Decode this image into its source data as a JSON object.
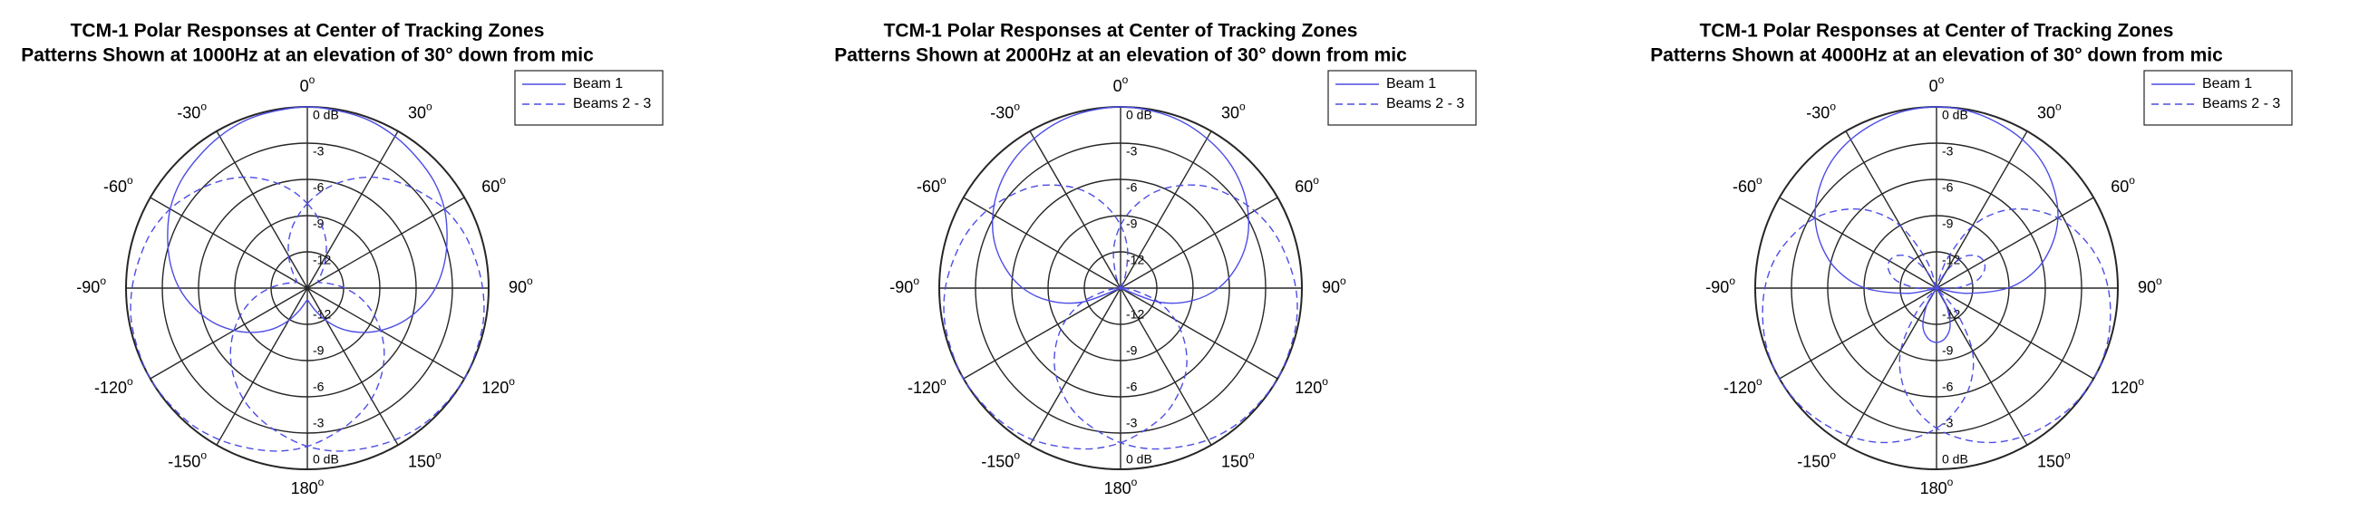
{
  "chart_data": [
    {
      "type": "polar",
      "title": "TCM-1 Polar Responses at Center of Tracking Zones",
      "subtitle": "Patterns Shown at 1000Hz at an elevation of 30° down from mic",
      "angle_unit": "o",
      "theta": [
        0,
        10,
        20,
        30,
        40,
        50,
        60,
        70,
        80,
        90,
        100,
        110,
        120,
        130,
        140,
        150,
        160,
        170,
        180,
        190,
        200,
        210,
        220,
        230,
        240,
        250,
        260,
        270,
        280,
        290,
        300,
        310,
        320,
        330,
        340,
        350
      ],
      "xticks": [
        0,
        30,
        60,
        90,
        120,
        150,
        180,
        -150,
        -120,
        -90,
        -60,
        -30
      ],
      "ylim": [
        -15,
        0
      ],
      "yticks": [
        {
          "value": 0,
          "label": "0 dB"
        },
        -3,
        -6,
        -9,
        -12
      ],
      "series": [
        {
          "name": "Beam 1",
          "color": "#4d4de6",
          "style": "solid",
          "values": [
            0,
            -0.1,
            -0.2,
            -0.5,
            -0.9,
            -1.3,
            -1.9,
            -2.7,
            -3.5,
            -4.4,
            -5.5,
            -6.7,
            -8.0,
            -9.3,
            -10.6,
            -11.9,
            -13.0,
            -13.7,
            -14.0,
            -13.7,
            -13.0,
            -11.9,
            -10.6,
            -9.3,
            -8.0,
            -6.7,
            -5.5,
            -4.4,
            -3.5,
            -2.7,
            -1.9,
            -1.3,
            -0.9,
            -0.5,
            -0.2,
            -0.1
          ]
        },
        {
          "name": "Beams 2 - 3",
          "color": "#4d4de6",
          "style": "dashed",
          "values": [
            -8.0,
            -6.7,
            -5.5,
            -4.4,
            -3.5,
            -2.7,
            -1.9,
            -1.3,
            -0.9,
            -0.5,
            -0.2,
            -0.1,
            0,
            -0.1,
            -0.2,
            -0.5,
            -0.9,
            -1.3,
            -1.9,
            -2.7,
            -3.5,
            -4.4,
            -5.5,
            -6.7,
            -8.0,
            -9.3,
            -10.6,
            -11.9,
            -13.0,
            -13.7,
            -14.0,
            -13.7,
            -13.0,
            -11.9,
            -10.6,
            -9.3
          ]
        },
        {
          "color": "#4d4de6",
          "style": "dashed",
          "values": [
            -8.0,
            -9.3,
            -10.6,
            -11.9,
            -13.0,
            -13.7,
            -14.0,
            -13.7,
            -13.0,
            -11.9,
            -10.6,
            -9.3,
            -8.0,
            -6.7,
            -5.5,
            -4.4,
            -3.5,
            -2.7,
            -1.9,
            -1.3,
            -0.9,
            -0.5,
            -0.2,
            -0.1,
            0,
            -0.1,
            -0.2,
            -0.5,
            -0.9,
            -1.3,
            -1.9,
            -2.7,
            -3.5,
            -4.4,
            -5.5,
            -6.7
          ]
        }
      ]
    },
    {
      "type": "polar",
      "title": "TCM-1 Polar Responses at Center of Tracking Zones",
      "subtitle": "Patterns Shown at 2000Hz at an elevation of 30° down from mic",
      "angle_unit": "o",
      "theta": [
        0,
        10,
        20,
        30,
        40,
        50,
        60,
        70,
        80,
        90,
        100,
        110,
        120,
        130,
        140,
        150,
        160,
        170,
        180,
        190,
        200,
        210,
        220,
        230,
        240,
        250,
        260,
        270,
        280,
        290,
        300,
        310,
        320,
        330,
        340,
        350
      ],
      "xticks": [
        0,
        30,
        60,
        90,
        120,
        150,
        180,
        -150,
        -120,
        -90,
        -60,
        -30
      ],
      "ylim": [
        -15,
        0
      ],
      "yticks": [
        {
          "value": 0,
          "label": "0 dB"
        },
        -3,
        -6,
        -9,
        -12
      ],
      "series": [
        {
          "name": "Beam 1",
          "color": "#4d4de6",
          "style": "solid",
          "values": [
            0,
            -0.1,
            -0.3,
            -0.7,
            -1.2,
            -1.9,
            -2.8,
            -3.9,
            -5.3,
            -6.9,
            -9.0,
            -11.6,
            -15,
            -15,
            -15,
            -15,
            -15,
            -15,
            -15,
            -15,
            -15,
            -15,
            -15,
            -15,
            -15,
            -11.6,
            -9.0,
            -6.9,
            -5.3,
            -3.9,
            -2.8,
            -1.9,
            -1.2,
            -0.7,
            -0.3,
            -0.1
          ]
        },
        {
          "name": "Beams 2 - 3",
          "color": "#4d4de6",
          "style": "dashed",
          "values": [
            -9.8,
            -8.1,
            -6.5,
            -5.2,
            -4.0,
            -3.1,
            -2.2,
            -1.5,
            -1.0,
            -0.5,
            -0.2,
            -0.1,
            0,
            -0.1,
            -0.2,
            -0.5,
            -1.0,
            -1.5,
            -2.2,
            -3.1,
            -4.0,
            -5.2,
            -6.5,
            -8.1,
            -9.8,
            -11.7,
            -13.8,
            -15,
            -15,
            -15,
            -15,
            -15,
            -15,
            -15,
            -13.8,
            -11.7
          ]
        },
        {
          "color": "#4d4de6",
          "style": "dashed",
          "values": [
            -9.8,
            -11.7,
            -13.8,
            -15,
            -15,
            -15,
            -15,
            -15,
            -15,
            -15,
            -13.8,
            -11.7,
            -9.8,
            -8.1,
            -6.5,
            -5.2,
            -4.0,
            -3.1,
            -2.2,
            -1.5,
            -1.0,
            -0.5,
            -0.2,
            -0.1,
            0,
            -0.1,
            -0.2,
            -0.5,
            -1.0,
            -1.5,
            -2.2,
            -3.1,
            -4.0,
            -5.2,
            -6.5,
            -8.1
          ]
        }
      ]
    },
    {
      "type": "polar",
      "title": "TCM-1 Polar Responses at Center of Tracking Zones",
      "subtitle": "Patterns Shown at 4000Hz at an elevation of 30° down from mic",
      "angle_unit": "o",
      "theta": [
        0,
        10,
        20,
        30,
        40,
        50,
        60,
        70,
        80,
        90,
        100,
        110,
        120,
        130,
        140,
        150,
        160,
        170,
        180,
        190,
        200,
        210,
        220,
        230,
        240,
        250,
        260,
        270,
        280,
        290,
        300,
        310,
        320,
        330,
        340,
        350
      ],
      "xticks": [
        0,
        30,
        60,
        90,
        120,
        150,
        180,
        -150,
        -120,
        -90,
        -60,
        -30
      ],
      "ylim": [
        -15,
        0
      ],
      "yticks": [
        {
          "value": 0,
          "label": "0 dB"
        },
        -3,
        -6,
        -9,
        -12
      ],
      "series": [
        {
          "name": "Beam 1",
          "color": "#4d4de6",
          "style": "solid",
          "values": [
            0,
            -0.1,
            -0.4,
            -0.8,
            -1.4,
            -2.3,
            -3.4,
            -4.9,
            -6.7,
            -9.1,
            -12.5,
            -15,
            -15,
            -15,
            -15,
            -13.4,
            -11.7,
            -10.8,
            -10.5,
            -10.8,
            -11.7,
            -13.4,
            -15,
            -15,
            -15,
            -15,
            -12.5,
            -9.1,
            -6.7,
            -4.9,
            -3.4,
            -2.3,
            -1.4,
            -0.8,
            -0.4,
            -0.1
          ]
        },
        {
          "name": "Beams 2 - 3",
          "color": "#4d4de6",
          "style": "dashed",
          "values": [
            -15,
            -15,
            -12.5,
            -9.1,
            -6.7,
            -4.9,
            -3.4,
            -2.3,
            -1.4,
            -0.8,
            -0.4,
            -0.1,
            0,
            -0.1,
            -0.4,
            -0.8,
            -1.4,
            -2.3,
            -3.4,
            -4.9,
            -6.7,
            -9.1,
            -12.5,
            -15,
            -15,
            -15,
            -15,
            -13.4,
            -11.7,
            -10.8,
            -10.5,
            -10.8,
            -11.7,
            -13.4,
            -15,
            -15
          ]
        },
        {
          "color": "#4d4de6",
          "style": "dashed",
          "values": [
            -15,
            -15,
            -15,
            -13.4,
            -11.7,
            -10.8,
            -10.5,
            -10.8,
            -11.7,
            -13.4,
            -15,
            -15,
            -15,
            -15,
            -12.5,
            -9.1,
            -6.7,
            -4.9,
            -3.4,
            -2.3,
            -1.4,
            -0.8,
            -0.4,
            -0.1,
            0,
            -0.1,
            -0.4,
            -0.8,
            -1.4,
            -2.3,
            -3.4,
            -4.9,
            -6.7,
            -9.1,
            -12.5,
            -15
          ]
        }
      ]
    }
  ]
}
